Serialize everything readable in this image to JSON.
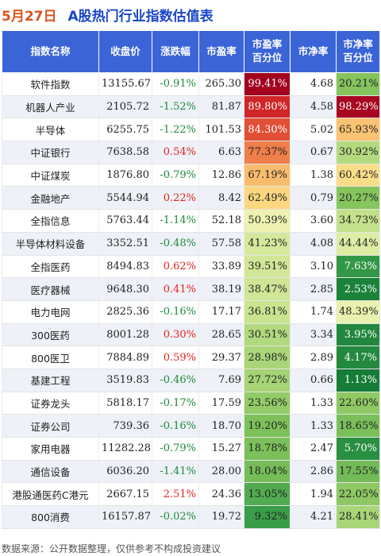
{
  "header": {
    "date": "5月27日",
    "title": "A股热门行业指数估值表"
  },
  "colors": {
    "header_bg": "#3b64d7",
    "up": "#e0241e",
    "down": "#1f8a3a"
  },
  "chart_data": {
    "type": "table",
    "columns": [
      "指数名称",
      "收盘价",
      "涨跌幅",
      "市盈率",
      "市盈率\n百分位",
      "市净率",
      "市净率\n百分位"
    ],
    "rows": [
      {
        "name": "软件指数",
        "close": "13155.67",
        "change": "-0.91%",
        "pe": "265.30",
        "pe_pct": "99.41%",
        "pb": "4.68",
        "pb_pct": "20.21%"
      },
      {
        "name": "机器人产业",
        "close": "2105.72",
        "change": "-1.52%",
        "pe": "81.87",
        "pe_pct": "89.80%",
        "pb": "4.58",
        "pb_pct": "98.29%"
      },
      {
        "name": "半导体",
        "close": "6255.75",
        "change": "-1.22%",
        "pe": "101.53",
        "pe_pct": "84.30%",
        "pb": "5.02",
        "pb_pct": "65.93%"
      },
      {
        "name": "中证银行",
        "close": "7638.58",
        "change": "0.54%",
        "pe": "6.63",
        "pe_pct": "77.37%",
        "pb": "0.67",
        "pb_pct": "30.92%"
      },
      {
        "name": "中证煤炭",
        "close": "1876.80",
        "change": "-0.79%",
        "pe": "12.86",
        "pe_pct": "67.19%",
        "pb": "1.38",
        "pb_pct": "60.42%"
      },
      {
        "name": "金融地产",
        "close": "5544.94",
        "change": "0.22%",
        "pe": "8.42",
        "pe_pct": "62.49%",
        "pb": "0.79",
        "pb_pct": "20.27%"
      },
      {
        "name": "全指信息",
        "close": "5763.44",
        "change": "-1.14%",
        "pe": "52.18",
        "pe_pct": "50.39%",
        "pb": "3.60",
        "pb_pct": "34.73%"
      },
      {
        "name": "半导体材料设备",
        "close": "3352.51",
        "change": "-0.48%",
        "pe": "57.58",
        "pe_pct": "41.23%",
        "pb": "4.08",
        "pb_pct": "44.44%"
      },
      {
        "name": "全指医药",
        "close": "8494.83",
        "change": "0.62%",
        "pe": "33.89",
        "pe_pct": "39.51%",
        "pb": "3.10",
        "pb_pct": "7.63%"
      },
      {
        "name": "医疗器械",
        "close": "9648.30",
        "change": "0.41%",
        "pe": "38.19",
        "pe_pct": "38.47%",
        "pb": "2.85",
        "pb_pct": "2.53%"
      },
      {
        "name": "电力电网",
        "close": "2825.36",
        "change": "-0.16%",
        "pe": "17.17",
        "pe_pct": "36.81%",
        "pb": "1.74",
        "pb_pct": "48.39%"
      },
      {
        "name": "300医药",
        "close": "8001.28",
        "change": "0.30%",
        "pe": "28.65",
        "pe_pct": "30.51%",
        "pb": "3.34",
        "pb_pct": "3.95%"
      },
      {
        "name": "800医卫",
        "close": "7884.89",
        "change": "0.59%",
        "pe": "29.37",
        "pe_pct": "28.98%",
        "pb": "2.89",
        "pb_pct": "4.17%"
      },
      {
        "name": "基建工程",
        "close": "3519.83",
        "change": "-0.46%",
        "pe": "7.69",
        "pe_pct": "27.72%",
        "pb": "0.66",
        "pb_pct": "1.13%"
      },
      {
        "name": "证券龙头",
        "close": "5818.17",
        "change": "-0.17%",
        "pe": "17.59",
        "pe_pct": "23.56%",
        "pb": "1.33",
        "pb_pct": "22.60%"
      },
      {
        "name": "证券公司",
        "close": "739.36",
        "change": "-0.16%",
        "pe": "18.70",
        "pe_pct": "19.20%",
        "pb": "1.33",
        "pb_pct": "18.65%"
      },
      {
        "name": "家用电器",
        "close": "11282.28",
        "change": "-0.79%",
        "pe": "15.27",
        "pe_pct": "18.78%",
        "pb": "2.47",
        "pb_pct": "5.70%"
      },
      {
        "name": "通信设备",
        "close": "6036.20",
        "change": "-1.41%",
        "pe": "28.00",
        "pe_pct": "18.04%",
        "pb": "2.86",
        "pb_pct": "17.55%"
      },
      {
        "name": "港股通医药C港元",
        "close": "2667.15",
        "change": "2.51%",
        "pe": "24.36",
        "pe_pct": "13.05%",
        "pb": "1.94",
        "pb_pct": "22.05%"
      },
      {
        "name": "800消费",
        "close": "16157.87",
        "change": "-0.02%",
        "pe": "19.72",
        "pe_pct": "9.32%",
        "pb": "4.21",
        "pb_pct": "28.41%"
      }
    ]
  },
  "footer": {
    "source": "数据来源：公开数据整理，仅供参考不构成投资建议"
  }
}
